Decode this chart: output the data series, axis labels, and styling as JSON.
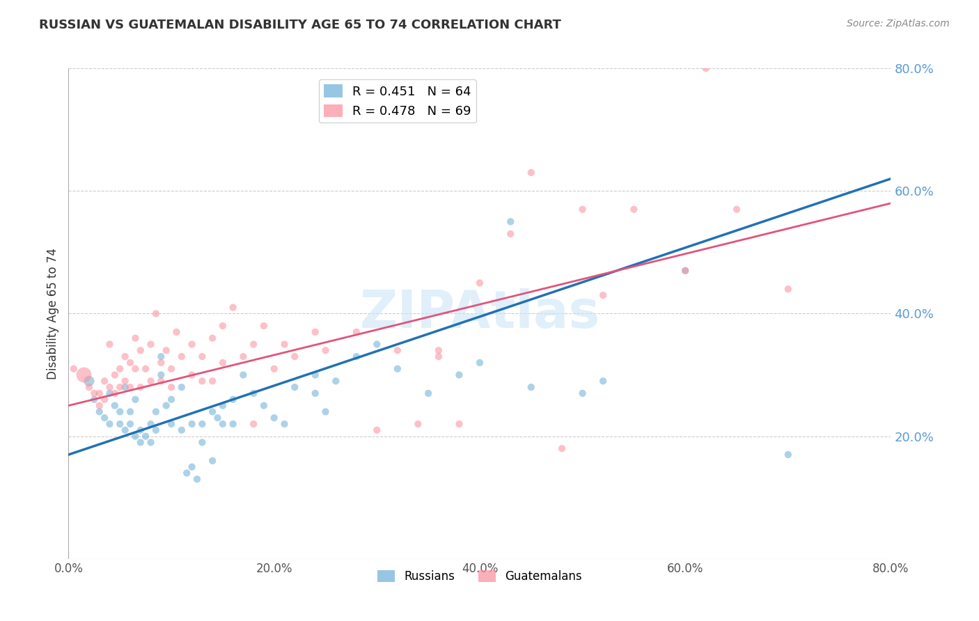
{
  "title": "RUSSIAN VS GUATEMALAN DISABILITY AGE 65 TO 74 CORRELATION CHART",
  "source": "Source: ZipAtlas.com",
  "ylabel": "Disability Age 65 to 74",
  "legend_label_blue": "Russians",
  "legend_label_pink": "Guatemalans",
  "r_blue": 0.451,
  "n_blue": 64,
  "r_pink": 0.478,
  "n_pink": 69,
  "color_blue": "#6baed6",
  "color_pink": "#fc8d9b",
  "line_color_blue": "#2171b5",
  "line_color_pink": "#e0547a",
  "watermark": "ZIPAtlas",
  "xlim": [
    0.0,
    0.8
  ],
  "ylim": [
    0.0,
    0.8
  ],
  "x_ticks": [
    0.0,
    0.2,
    0.4,
    0.6,
    0.8
  ],
  "x_tick_labels": [
    "0.0%",
    "20.0%",
    "40.0%",
    "60.0%",
    "80.0%"
  ],
  "y_ticks_right": [
    0.2,
    0.4,
    0.6,
    0.8
  ],
  "y_tick_labels_right": [
    "20.0%",
    "40.0%",
    "60.0%",
    "80.0%"
  ],
  "blue_scatter": [
    [
      0.02,
      0.29
    ],
    [
      0.025,
      0.26
    ],
    [
      0.03,
      0.24
    ],
    [
      0.035,
      0.23
    ],
    [
      0.04,
      0.27
    ],
    [
      0.04,
      0.22
    ],
    [
      0.045,
      0.25
    ],
    [
      0.05,
      0.22
    ],
    [
      0.05,
      0.24
    ],
    [
      0.055,
      0.28
    ],
    [
      0.055,
      0.21
    ],
    [
      0.06,
      0.24
    ],
    [
      0.06,
      0.22
    ],
    [
      0.065,
      0.26
    ],
    [
      0.065,
      0.2
    ],
    [
      0.07,
      0.21
    ],
    [
      0.07,
      0.19
    ],
    [
      0.075,
      0.2
    ],
    [
      0.08,
      0.22
    ],
    [
      0.08,
      0.19
    ],
    [
      0.085,
      0.24
    ],
    [
      0.085,
      0.21
    ],
    [
      0.09,
      0.33
    ],
    [
      0.09,
      0.3
    ],
    [
      0.095,
      0.25
    ],
    [
      0.1,
      0.26
    ],
    [
      0.1,
      0.22
    ],
    [
      0.11,
      0.28
    ],
    [
      0.11,
      0.21
    ],
    [
      0.115,
      0.14
    ],
    [
      0.12,
      0.15
    ],
    [
      0.12,
      0.22
    ],
    [
      0.125,
      0.13
    ],
    [
      0.13,
      0.22
    ],
    [
      0.13,
      0.19
    ],
    [
      0.14,
      0.16
    ],
    [
      0.14,
      0.24
    ],
    [
      0.145,
      0.23
    ],
    [
      0.15,
      0.25
    ],
    [
      0.15,
      0.22
    ],
    [
      0.16,
      0.26
    ],
    [
      0.16,
      0.22
    ],
    [
      0.17,
      0.3
    ],
    [
      0.18,
      0.27
    ],
    [
      0.19,
      0.25
    ],
    [
      0.2,
      0.23
    ],
    [
      0.21,
      0.22
    ],
    [
      0.22,
      0.28
    ],
    [
      0.24,
      0.3
    ],
    [
      0.24,
      0.27
    ],
    [
      0.25,
      0.24
    ],
    [
      0.26,
      0.29
    ],
    [
      0.28,
      0.33
    ],
    [
      0.3,
      0.35
    ],
    [
      0.32,
      0.31
    ],
    [
      0.35,
      0.27
    ],
    [
      0.38,
      0.3
    ],
    [
      0.4,
      0.32
    ],
    [
      0.43,
      0.55
    ],
    [
      0.45,
      0.28
    ],
    [
      0.5,
      0.27
    ],
    [
      0.52,
      0.29
    ],
    [
      0.6,
      0.47
    ],
    [
      0.7,
      0.17
    ]
  ],
  "blue_dot_size": 55,
  "pink_scatter": [
    [
      0.015,
      0.3
    ],
    [
      0.02,
      0.28
    ],
    [
      0.025,
      0.27
    ],
    [
      0.03,
      0.27
    ],
    [
      0.03,
      0.25
    ],
    [
      0.035,
      0.29
    ],
    [
      0.035,
      0.26
    ],
    [
      0.04,
      0.35
    ],
    [
      0.04,
      0.28
    ],
    [
      0.045,
      0.3
    ],
    [
      0.045,
      0.27
    ],
    [
      0.05,
      0.31
    ],
    [
      0.05,
      0.28
    ],
    [
      0.055,
      0.33
    ],
    [
      0.055,
      0.29
    ],
    [
      0.06,
      0.32
    ],
    [
      0.06,
      0.28
    ],
    [
      0.065,
      0.36
    ],
    [
      0.065,
      0.31
    ],
    [
      0.07,
      0.34
    ],
    [
      0.07,
      0.28
    ],
    [
      0.075,
      0.31
    ],
    [
      0.08,
      0.35
    ],
    [
      0.08,
      0.29
    ],
    [
      0.085,
      0.4
    ],
    [
      0.09,
      0.32
    ],
    [
      0.09,
      0.29
    ],
    [
      0.095,
      0.34
    ],
    [
      0.1,
      0.31
    ],
    [
      0.1,
      0.28
    ],
    [
      0.105,
      0.37
    ],
    [
      0.11,
      0.33
    ],
    [
      0.12,
      0.35
    ],
    [
      0.12,
      0.3
    ],
    [
      0.13,
      0.33
    ],
    [
      0.13,
      0.29
    ],
    [
      0.14,
      0.36
    ],
    [
      0.14,
      0.29
    ],
    [
      0.15,
      0.38
    ],
    [
      0.15,
      0.32
    ],
    [
      0.16,
      0.41
    ],
    [
      0.17,
      0.33
    ],
    [
      0.18,
      0.35
    ],
    [
      0.18,
      0.22
    ],
    [
      0.19,
      0.38
    ],
    [
      0.2,
      0.31
    ],
    [
      0.21,
      0.35
    ],
    [
      0.22,
      0.33
    ],
    [
      0.24,
      0.37
    ],
    [
      0.25,
      0.34
    ],
    [
      0.28,
      0.37
    ],
    [
      0.3,
      0.21
    ],
    [
      0.32,
      0.34
    ],
    [
      0.34,
      0.22
    ],
    [
      0.36,
      0.34
    ],
    [
      0.36,
      0.33
    ],
    [
      0.38,
      0.22
    ],
    [
      0.4,
      0.45
    ],
    [
      0.43,
      0.53
    ],
    [
      0.45,
      0.63
    ],
    [
      0.48,
      0.18
    ],
    [
      0.5,
      0.57
    ],
    [
      0.52,
      0.43
    ],
    [
      0.55,
      0.57
    ],
    [
      0.6,
      0.47
    ],
    [
      0.62,
      0.8
    ],
    [
      0.65,
      0.57
    ],
    [
      0.7,
      0.44
    ],
    [
      0.005,
      0.31
    ]
  ],
  "pink_dot_size": 55,
  "blue_line_x": [
    0.0,
    0.8
  ],
  "blue_line_y": [
    0.17,
    0.62
  ],
  "pink_line_x": [
    0.0,
    0.8
  ],
  "pink_line_y": [
    0.25,
    0.58
  ]
}
